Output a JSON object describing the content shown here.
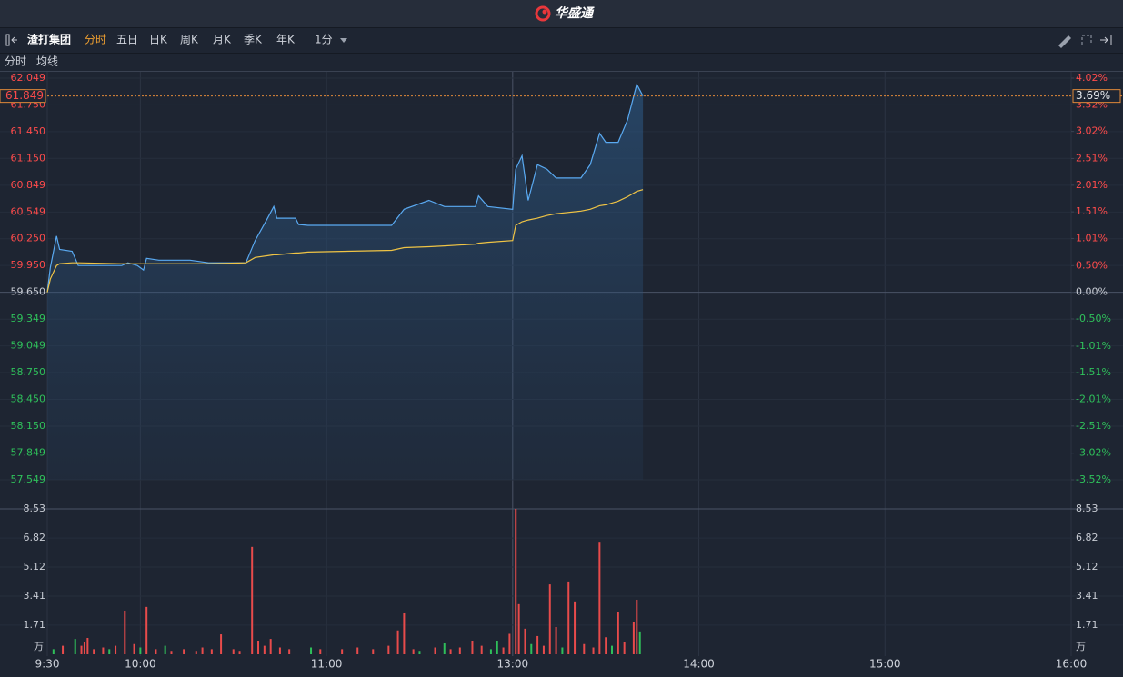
{
  "app": {
    "name": "华盛通"
  },
  "toolbar": {
    "symbol": "渣打集团",
    "periods": [
      "分时",
      "五日",
      "日K",
      "周K",
      "月K",
      "季K",
      "年K"
    ],
    "interval": "1分"
  },
  "chart_data": [
    {
      "type": "line",
      "x": [
        0,
        1,
        3,
        4,
        8,
        10,
        24,
        26,
        29,
        31,
        32,
        36,
        46,
        52,
        64,
        67,
        71,
        73,
        74,
        80,
        81,
        84,
        111,
        115,
        123,
        128,
        138,
        139,
        142,
        150,
        151,
        153,
        155,
        158,
        161,
        164,
        172,
        175,
        178,
        180,
        184,
        187,
        190,
        192
      ],
      "xlim": [
        0,
        330
      ],
      "series": [
        {
          "name": "分时",
          "color": "#5aaaf2",
          "values": [
            59.65,
            59.93,
            60.28,
            60.13,
            60.11,
            59.95,
            59.95,
            59.98,
            59.95,
            59.9,
            60.03,
            60.01,
            60.01,
            59.98,
            59.98,
            60.23,
            60.48,
            60.61,
            60.48,
            60.48,
            60.41,
            60.4,
            60.4,
            60.58,
            60.68,
            60.61,
            60.61,
            60.73,
            60.61,
            60.58,
            61.03,
            61.18,
            60.68,
            61.08,
            61.03,
            60.93,
            60.93,
            61.08,
            61.43,
            61.33,
            61.33,
            61.58,
            61.98,
            61.849
          ]
        },
        {
          "name": "均线",
          "color": "#f0c445",
          "values": [
            59.65,
            59.8,
            59.95,
            59.97,
            59.98,
            59.98,
            59.97,
            59.97,
            59.97,
            59.97,
            59.97,
            59.97,
            59.97,
            59.97,
            59.98,
            60.04,
            60.06,
            60.07,
            60.07,
            60.09,
            60.09,
            60.1,
            60.12,
            60.15,
            60.16,
            60.17,
            60.19,
            60.2,
            60.21,
            60.23,
            60.4,
            60.44,
            60.46,
            60.48,
            60.51,
            60.53,
            60.56,
            60.58,
            60.62,
            60.63,
            60.67,
            60.72,
            60.78,
            60.8
          ]
        }
      ],
      "ylim": [
        57.549,
        62.049
      ],
      "yticks": [
        62.049,
        {
          "value": 61.75,
          "label": "61.750"
        },
        {
          "value": 61.45,
          "label": "61.450"
        },
        {
          "value": 61.15,
          "label": "61.150"
        },
        60.849,
        60.549,
        {
          "value": 60.25,
          "label": "60.250"
        },
        {
          "value": 59.95,
          "label": "59.950"
        },
        {
          "value": 59.65,
          "label": "59.650"
        },
        59.349,
        59.049,
        {
          "value": 58.75,
          "label": "58.750"
        },
        {
          "value": 58.45,
          "label": "58.450"
        },
        {
          "value": 58.15,
          "label": "58.150"
        },
        57.849,
        57.549
      ],
      "y2lim": [
        -3.52,
        4.02
      ],
      "y2ticks": [
        {
          "value": 4.02,
          "label": "4.02%"
        },
        {
          "value": 3.52,
          "label": "3.52%"
        },
        {
          "value": 3.02,
          "label": "3.02%"
        },
        {
          "value": 2.51,
          "label": "2.51%"
        },
        {
          "value": 2.01,
          "label": "2.01%"
        },
        {
          "value": 1.51,
          "label": "1.51%"
        },
        {
          "value": 1.01,
          "label": "1.01%"
        },
        {
          "value": 0.5,
          "label": "0.50%"
        },
        {
          "value": 0,
          "label": "0.00%"
        },
        {
          "value": -0.5,
          "label": "-0.50%"
        },
        {
          "value": -1.01,
          "label": "-1.01%"
        },
        {
          "value": -1.51,
          "label": "-1.51%"
        },
        {
          "value": -2.01,
          "label": "-2.01%"
        },
        {
          "value": -2.51,
          "label": "-2.51%"
        },
        {
          "value": -3.02,
          "label": "-3.02%"
        },
        {
          "value": -3.52,
          "label": "-3.52%"
        }
      ],
      "last_price": 61.849,
      "last_change": {
        "value": 3.69,
        "label": "3.69%"
      },
      "grid": true
    },
    {
      "type": "bar",
      "unit": "万",
      "x": [
        2,
        5,
        9,
        11,
        12,
        13,
        15,
        18,
        20,
        22,
        25,
        28,
        30,
        32,
        35,
        38,
        40,
        44,
        48,
        50,
        53,
        56,
        60,
        62,
        66,
        68,
        70,
        72,
        75,
        78,
        85,
        88,
        95,
        100,
        105,
        110,
        113,
        115,
        118,
        120,
        125,
        128,
        130,
        133,
        137,
        140,
        143,
        145,
        147,
        149,
        151,
        152,
        154,
        156,
        158,
        160,
        162,
        164,
        166,
        168,
        170,
        173,
        176,
        178,
        180,
        182,
        184,
        186,
        189,
        190,
        191
      ],
      "values": [
        0.3,
        0.5,
        0.9,
        0.5,
        0.7,
        0.96,
        0.3,
        0.4,
        0.3,
        0.5,
        2.56,
        0.6,
        0.4,
        2.78,
        0.3,
        0.5,
        0.2,
        0.3,
        0.2,
        0.4,
        0.3,
        1.17,
        0.3,
        0.2,
        6.3,
        0.8,
        0.5,
        0.9,
        0.4,
        0.3,
        0.4,
        0.3,
        0.3,
        0.4,
        0.3,
        0.5,
        1.4,
        2.4,
        0.3,
        0.2,
        0.4,
        0.64,
        0.3,
        0.4,
        0.8,
        0.5,
        0.3,
        0.8,
        0.4,
        1.2,
        8.53,
        2.94,
        1.5,
        0.6,
        1.07,
        0.5,
        4.1,
        1.6,
        0.4,
        4.27,
        3.1,
        0.6,
        0.4,
        6.6,
        1.0,
        0.5,
        2.5,
        0.7,
        1.87,
        3.2,
        1.34
      ],
      "colors": [
        "#2fbf5a",
        "#e84b4b",
        "#2fbf5a",
        "#e84b4b",
        "#e84b4b",
        "#e84b4b",
        "#e84b4b",
        "#e84b4b",
        "#2fbf5a",
        "#e84b4b",
        "#e84b4b",
        "#e84b4b",
        "#2fbf5a",
        "#e84b4b",
        "#e84b4b",
        "#2fbf5a",
        "#e84b4b",
        "#e84b4b",
        "#e84b4b",
        "#e84b4b",
        "#e84b4b",
        "#e84b4b",
        "#e84b4b",
        "#e84b4b",
        "#e84b4b",
        "#e84b4b",
        "#e84b4b",
        "#e84b4b",
        "#e84b4b",
        "#e84b4b",
        "#2fbf5a",
        "#e84b4b",
        "#e84b4b",
        "#e84b4b",
        "#e84b4b",
        "#e84b4b",
        "#e84b4b",
        "#e84b4b",
        "#e84b4b",
        "#2fbf5a",
        "#e84b4b",
        "#2fbf5a",
        "#e84b4b",
        "#e84b4b",
        "#e84b4b",
        "#e84b4b",
        "#2fbf5a",
        "#2fbf5a",
        "#e84b4b",
        "#e84b4b",
        "#e84b4b",
        "#e84b4b",
        "#e84b4b",
        "#2fbf5a",
        "#e84b4b",
        "#e84b4b",
        "#e84b4b",
        "#e84b4b",
        "#2fbf5a",
        "#e84b4b",
        "#e84b4b",
        "#e84b4b",
        "#e84b4b",
        "#e84b4b",
        "#e84b4b",
        "#2fbf5a",
        "#e84b4b",
        "#e84b4b",
        "#e84b4b",
        "#e84b4b",
        "#2fbf5a"
      ],
      "ylim": [
        0,
        8.53
      ],
      "yticks": [
        8.53,
        6.82,
        5.12,
        3.41,
        1.71
      ],
      "xlim": [
        0,
        330
      ],
      "xticks": [
        {
          "value": 0,
          "label": "9:30"
        },
        {
          "value": 30,
          "label": "10:00"
        },
        {
          "value": 90,
          "label": "11:00"
        },
        {
          "value": 150,
          "label": "13:00"
        },
        {
          "value": 210,
          "label": "14:00"
        },
        {
          "value": 270,
          "label": "15:00"
        },
        {
          "value": 330,
          "label": "16:00"
        }
      ]
    }
  ]
}
